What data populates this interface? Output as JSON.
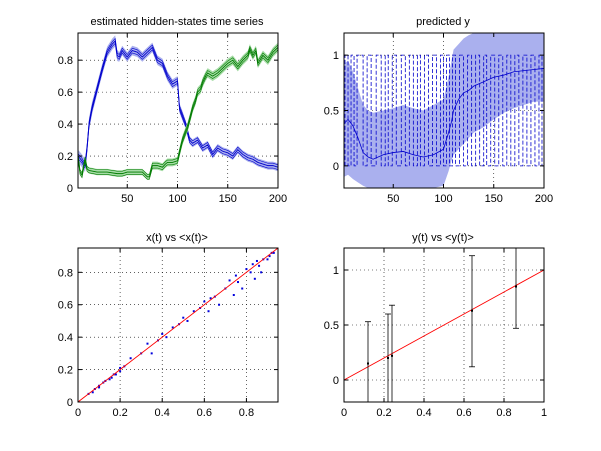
{
  "chart_data": [
    {
      "type": "line",
      "title": "estimated hidden-states time series",
      "xlim": [
        1,
        200
      ],
      "ylim": [
        0,
        0.97
      ],
      "xticks": [
        50,
        100,
        150,
        200
      ],
      "yticks": [
        0,
        0.2,
        0.4,
        0.6,
        0.8
      ],
      "grid": true,
      "series": [
        {
          "color": "#0000cc",
          "band_color": "#aab0ee",
          "x": [
            1,
            5,
            8,
            10,
            12,
            15,
            20,
            25,
            30,
            35,
            38,
            40,
            42,
            45,
            50,
            55,
            60,
            65,
            70,
            75,
            80,
            85,
            90,
            95,
            100,
            102,
            105,
            108,
            110,
            112,
            115,
            120,
            125,
            130,
            135,
            140,
            145,
            150,
            155,
            160,
            165,
            170,
            175,
            180,
            185,
            190,
            195,
            200
          ],
          "y": [
            0.2,
            0.17,
            0.14,
            0.25,
            0.4,
            0.5,
            0.62,
            0.74,
            0.85,
            0.9,
            0.92,
            0.83,
            0.82,
            0.86,
            0.82,
            0.86,
            0.85,
            0.82,
            0.85,
            0.88,
            0.8,
            0.78,
            0.7,
            0.65,
            0.67,
            0.5,
            0.45,
            0.4,
            0.35,
            0.3,
            0.28,
            0.3,
            0.25,
            0.27,
            0.21,
            0.25,
            0.23,
            0.22,
            0.2,
            0.24,
            0.21,
            0.19,
            0.18,
            0.16,
            0.15,
            0.14,
            0.14,
            0.13
          ],
          "band": [
            0.04,
            0.04,
            0.04,
            0.04,
            0.04,
            0.04,
            0.035,
            0.035,
            0.035,
            0.035,
            0.035,
            0.035,
            0.03,
            0.03,
            0.03,
            0.03,
            0.03,
            0.03,
            0.03,
            0.03,
            0.03,
            0.03,
            0.03,
            0.03,
            0.03,
            0.03,
            0.03,
            0.025,
            0.025,
            0.025,
            0.025,
            0.025,
            0.025,
            0.025,
            0.025,
            0.025,
            0.025,
            0.025,
            0.025,
            0.025,
            0.025,
            0.025,
            0.025,
            0.025,
            0.025,
            0.025,
            0.025,
            0.025
          ]
        },
        {
          "color": "#007a00",
          "band_color": "#a6dca6",
          "x": [
            1,
            3,
            5,
            8,
            10,
            12,
            20,
            30,
            40,
            45,
            50,
            60,
            65,
            70,
            72,
            75,
            80,
            85,
            88,
            90,
            95,
            100,
            103,
            105,
            108,
            110,
            113,
            115,
            118,
            120,
            123,
            125,
            128,
            130,
            135,
            140,
            145,
            150,
            155,
            160,
            165,
            170,
            172,
            175,
            178,
            180,
            185,
            190,
            195,
            200
          ],
          "y": [
            0.2,
            0.1,
            0.08,
            0.18,
            0.12,
            0.11,
            0.1,
            0.1,
            0.09,
            0.09,
            0.1,
            0.1,
            0.1,
            0.07,
            0.07,
            0.14,
            0.14,
            0.13,
            0.15,
            0.16,
            0.16,
            0.17,
            0.25,
            0.3,
            0.35,
            0.38,
            0.45,
            0.5,
            0.55,
            0.6,
            0.62,
            0.66,
            0.7,
            0.72,
            0.7,
            0.72,
            0.75,
            0.78,
            0.8,
            0.76,
            0.8,
            0.83,
            0.87,
            0.83,
            0.86,
            0.78,
            0.83,
            0.8,
            0.85,
            0.88
          ],
          "band": [
            0.02,
            0.02,
            0.02,
            0.02,
            0.02,
            0.02,
            0.02,
            0.02,
            0.02,
            0.02,
            0.02,
            0.02,
            0.02,
            0.02,
            0.02,
            0.025,
            0.025,
            0.025,
            0.025,
            0.025,
            0.025,
            0.025,
            0.03,
            0.03,
            0.03,
            0.03,
            0.03,
            0.03,
            0.03,
            0.03,
            0.03,
            0.03,
            0.03,
            0.03,
            0.03,
            0.03,
            0.03,
            0.03,
            0.03,
            0.03,
            0.03,
            0.03,
            0.03,
            0.03,
            0.03,
            0.03,
            0.03,
            0.03,
            0.03,
            0.03
          ]
        }
      ]
    },
    {
      "type": "line",
      "title": "predicted y",
      "xlim": [
        1,
        200
      ],
      "ylim": [
        -0.2,
        1.2
      ],
      "xticks": [
        50,
        100,
        150,
        200
      ],
      "yticks": [
        0,
        0.5,
        1
      ],
      "grid": true,
      "band_color": "#aab0ee",
      "mean": {
        "color": "#0000cc",
        "x": [
          1,
          5,
          10,
          15,
          20,
          25,
          30,
          40,
          50,
          60,
          70,
          80,
          90,
          100,
          105,
          108,
          110,
          115,
          120,
          125,
          130,
          140,
          150,
          160,
          170,
          180,
          190,
          200
        ],
        "y": [
          0.38,
          0.42,
          0.36,
          0.25,
          0.12,
          0.08,
          0.06,
          0.1,
          0.12,
          0.13,
          0.1,
          0.08,
          0.1,
          0.15,
          0.3,
          0.4,
          0.5,
          0.6,
          0.66,
          0.68,
          0.72,
          0.76,
          0.8,
          0.82,
          0.85,
          0.86,
          0.87,
          0.88
        ],
        "lower": [
          -0.1,
          -0.08,
          -0.12,
          -0.15,
          -0.18,
          -0.2,
          -0.2,
          -0.2,
          -0.2,
          -0.2,
          -0.2,
          -0.2,
          -0.2,
          -0.18,
          -0.05,
          0.05,
          0.1,
          0.15,
          0.2,
          0.25,
          0.3,
          0.35,
          0.42,
          0.48,
          0.52,
          0.55,
          0.58,
          0.58
        ],
        "upper": [
          0.92,
          0.95,
          0.85,
          0.7,
          0.55,
          0.5,
          0.48,
          0.5,
          0.52,
          0.55,
          0.52,
          0.5,
          0.55,
          0.6,
          0.8,
          0.95,
          1.05,
          1.1,
          1.15,
          1.18,
          1.2,
          1.2,
          1.2,
          1.2,
          1.2,
          1.2,
          1.2,
          1.2
        ]
      },
      "spikes_x": [
        2,
        5,
        8,
        11,
        14,
        20,
        24,
        28,
        33,
        38,
        42,
        45,
        49,
        53,
        58,
        62,
        66,
        70,
        74,
        77,
        81,
        85,
        89,
        93,
        97,
        100,
        103,
        106,
        109,
        112,
        116,
        120,
        124,
        128,
        132,
        136,
        140,
        143,
        147,
        151,
        155,
        159,
        163,
        167,
        171,
        175,
        179,
        183,
        187,
        191,
        195,
        198
      ]
    },
    {
      "type": "scatter",
      "title": "x(t) vs <x(t)>",
      "xlim": [
        0,
        0.95
      ],
      "ylim": [
        0,
        0.95
      ],
      "xticks": [
        0,
        0.2,
        0.4,
        0.6,
        0.8
      ],
      "yticks": [
        0,
        0.2,
        0.4,
        0.6,
        0.8
      ],
      "grid": true,
      "reference_line": {
        "x": [
          0,
          0.95
        ],
        "y": [
          0,
          0.95
        ],
        "color": "#ff0000"
      },
      "points_color": "#0000dd",
      "points": [
        [
          0.05,
          0.05
        ],
        [
          0.07,
          0.06
        ],
        [
          0.08,
          0.08
        ],
        [
          0.1,
          0.09
        ],
        [
          0.1,
          0.1
        ],
        [
          0.12,
          0.12
        ],
        [
          0.13,
          0.13
        ],
        [
          0.15,
          0.14
        ],
        [
          0.16,
          0.15
        ],
        [
          0.17,
          0.17
        ],
        [
          0.18,
          0.17
        ],
        [
          0.2,
          0.19
        ],
        [
          0.2,
          0.21
        ],
        [
          0.22,
          0.22
        ],
        [
          0.25,
          0.27
        ],
        [
          0.3,
          0.3
        ],
        [
          0.33,
          0.36
        ],
        [
          0.35,
          0.3
        ],
        [
          0.38,
          0.38
        ],
        [
          0.4,
          0.42
        ],
        [
          0.42,
          0.4
        ],
        [
          0.45,
          0.46
        ],
        [
          0.48,
          0.48
        ],
        [
          0.5,
          0.52
        ],
        [
          0.52,
          0.5
        ],
        [
          0.55,
          0.56
        ],
        [
          0.58,
          0.58
        ],
        [
          0.6,
          0.62
        ],
        [
          0.62,
          0.56
        ],
        [
          0.63,
          0.64
        ],
        [
          0.65,
          0.65
        ],
        [
          0.67,
          0.6
        ],
        [
          0.7,
          0.7
        ],
        [
          0.72,
          0.75
        ],
        [
          0.74,
          0.66
        ],
        [
          0.75,
          0.78
        ],
        [
          0.76,
          0.74
        ],
        [
          0.78,
          0.7
        ],
        [
          0.8,
          0.82
        ],
        [
          0.82,
          0.8
        ],
        [
          0.83,
          0.85
        ],
        [
          0.84,
          0.76
        ],
        [
          0.85,
          0.87
        ],
        [
          0.86,
          0.84
        ],
        [
          0.87,
          0.8
        ],
        [
          0.88,
          0.88
        ],
        [
          0.9,
          0.88
        ],
        [
          0.91,
          0.9
        ],
        [
          0.92,
          0.92
        ],
        [
          0.93,
          0.92
        ]
      ]
    },
    {
      "type": "scatter",
      "title": "y(t) vs <y(t)>",
      "xlim": [
        0,
        1
      ],
      "ylim": [
        -0.2,
        1.2
      ],
      "xticks": [
        0,
        0.2,
        0.4,
        0.6,
        0.8,
        1
      ],
      "yticks": [
        0,
        0.5,
        1
      ],
      "grid": true,
      "reference_line": {
        "x": [
          0,
          1
        ],
        "y": [
          0,
          1
        ],
        "color": "#ff0000"
      },
      "errorbars": [
        {
          "x": 0.12,
          "y": 0.15,
          "lower": -0.2,
          "upper": 0.53
        },
        {
          "x": 0.22,
          "y": 0.2,
          "lower": -0.2,
          "upper": 0.6
        },
        {
          "x": 0.24,
          "y": 0.22,
          "lower": -0.2,
          "upper": 0.68
        },
        {
          "x": 0.64,
          "y": 0.63,
          "lower": 0.12,
          "upper": 1.13
        },
        {
          "x": 0.86,
          "y": 0.85,
          "lower": 0.47,
          "upper": 1.22
        }
      ]
    }
  ]
}
